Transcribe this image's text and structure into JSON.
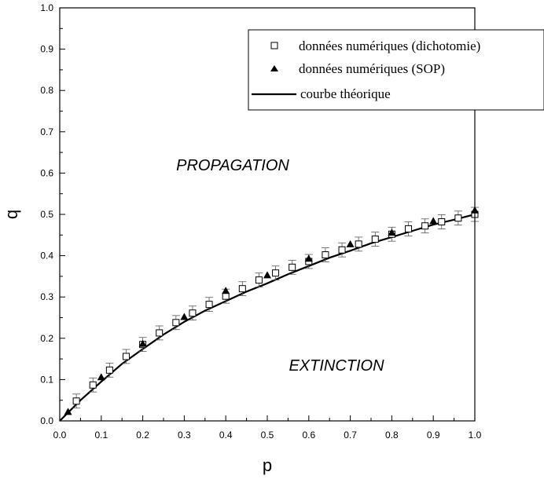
{
  "chart_data": {
    "type": "scatter",
    "xlabel": "p",
    "ylabel": "q",
    "xlim": [
      0.0,
      1.0
    ],
    "ylim": [
      0.0,
      1.0
    ],
    "xticks": [
      "0.0",
      "0.1",
      "0.2",
      "0.3",
      "0.4",
      "0.5",
      "0.6",
      "0.7",
      "0.8",
      "0.9",
      "1.0"
    ],
    "yticks": [
      "0.0",
      "0.1",
      "0.2",
      "0.3",
      "0.4",
      "0.5",
      "0.6",
      "0.7",
      "0.8",
      "0.9",
      "1.0"
    ],
    "grid": false,
    "legend_position": "top-right",
    "annotations": [
      {
        "text": "PROPAGATION",
        "x": 0.36,
        "y": 0.62
      },
      {
        "text": "EXTINCTION",
        "x": 0.64,
        "y": 0.13
      }
    ],
    "series": [
      {
        "name": "données numériques (dichotomie)",
        "marker": "open-square",
        "color": "#000000",
        "x": [
          0.04,
          0.08,
          0.12,
          0.16,
          0.2,
          0.24,
          0.28,
          0.32,
          0.36,
          0.4,
          0.44,
          0.48,
          0.52,
          0.56,
          0.6,
          0.64,
          0.68,
          0.72,
          0.76,
          0.8,
          0.84,
          0.88,
          0.92,
          0.96,
          1.0
        ],
        "y": [
          0.048,
          0.087,
          0.123,
          0.156,
          0.185,
          0.213,
          0.238,
          0.261,
          0.282,
          0.302,
          0.32,
          0.341,
          0.358,
          0.372,
          0.386,
          0.402,
          0.414,
          0.428,
          0.44,
          0.452,
          0.465,
          0.472,
          0.482,
          0.491,
          0.5
        ],
        "err": 0.017
      },
      {
        "name": "données numériques (SOP)",
        "marker": "filled-triangle",
        "color": "#000000",
        "x": [
          0.02,
          0.1,
          0.2,
          0.3,
          0.4,
          0.5,
          0.6,
          0.7,
          0.8,
          0.9,
          1.0
        ],
        "y": [
          0.022,
          0.106,
          0.187,
          0.252,
          0.315,
          0.353,
          0.393,
          0.428,
          0.456,
          0.484,
          0.51
        ]
      },
      {
        "name": "courbe théorique",
        "type": "line",
        "color": "#000000",
        "x": [
          0.0,
          0.05,
          0.1,
          0.15,
          0.2,
          0.25,
          0.3,
          0.35,
          0.4,
          0.45,
          0.5,
          0.55,
          0.6,
          0.65,
          0.7,
          0.75,
          0.8,
          0.85,
          0.9,
          0.95,
          1.0
        ],
        "y": [
          0.0,
          0.05,
          0.095,
          0.138,
          0.174,
          0.209,
          0.24,
          0.267,
          0.29,
          0.313,
          0.333,
          0.355,
          0.375,
          0.395,
          0.412,
          0.43,
          0.445,
          0.46,
          0.475,
          0.487,
          0.5
        ]
      }
    ]
  }
}
